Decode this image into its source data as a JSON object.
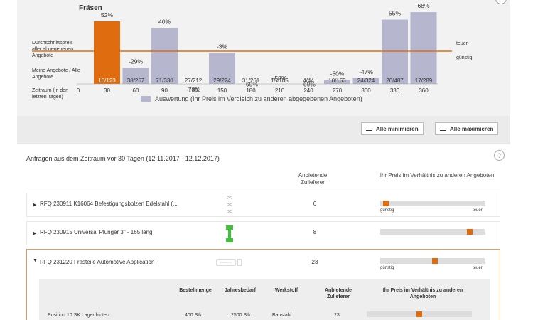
{
  "chart_data": {
    "type": "bar",
    "title": "Fräsen",
    "xlabel": "Zeitraum (in den letzten Tagen)",
    "x_ticks": [
      "0",
      "30",
      "60",
      "90",
      "120",
      "150",
      "180",
      "210",
      "240",
      "270",
      "300",
      "330",
      "360"
    ],
    "categories": [
      "30",
      "60",
      "90",
      "120",
      "150",
      "180",
      "210",
      "240",
      "270",
      "300",
      "330",
      "360"
    ],
    "percent_labels": [
      "52%",
      "-29%",
      "40%",
      "-78%",
      "-3%",
      "-69%",
      "-58%",
      "-69%",
      "-50%",
      "-47%",
      "55%",
      "68%"
    ],
    "bar_labels": [
      "10/123",
      "38/267",
      "71/330",
      "27/212",
      "29/224",
      "31/261",
      "15/105",
      "4/44",
      "10/163",
      "24/324",
      "20/487",
      "17/289"
    ],
    "values": [
      52,
      -29,
      40,
      -78,
      -3,
      -69,
      -58,
      -69,
      -50,
      -47,
      55,
      68
    ],
    "highlight_index": 0,
    "highlight_color": "#e06c10",
    "bar_color": "#b6b6cf",
    "reference_line_color": "#e06c10",
    "ylim": [
      -100,
      100
    ],
    "legend": "Auswertung (Ihr Preis im Vergleich zu anderen abgegebenen Angeboten)",
    "legend_position": "bottom"
  },
  "chart_side_labels": {
    "avg_price": "Durchschnittspreis aller abgegebenen Angebote",
    "my_offers": "Meine Angebote / Alle Angebote",
    "period": "Zeitraum (in den letzten Tagen)"
  },
  "chart_right_labels": {
    "expensive": "teuer",
    "cheap": "günstig"
  },
  "toolbar": {
    "minimize_all": "Alle minimieren",
    "maximize_all": "Alle maximieren"
  },
  "section": {
    "title": "Anfragen aus dem Zeitraum vor 30 Tagen (12.11.2017 - 12.12.2017)",
    "help": "?",
    "col_suppliers": "Anbietende Zulieferer",
    "col_price_ratio": "Ihr Preis im Verhältnis zu anderen Angeboten"
  },
  "rfqs": [
    {
      "label": "RFQ 230911 K16064 Befestigungsbolzen Edelstahl (...",
      "suppliers": "6",
      "caret": "▶",
      "price_position": 0.03
    },
    {
      "label": "RFQ 230915 Universal Plunger 3\" - 165 lang",
      "suppliers": "8",
      "caret": "▶",
      "price_position": 0.87
    },
    {
      "label": "RFQ 231220 Frästeile Automotive Application",
      "suppliers": "23",
      "caret": "▼",
      "price_position": 0.52
    }
  ],
  "range_labels": {
    "cheap": "günstig",
    "expensive": "teuer"
  },
  "details": {
    "headers": {
      "order_qty": "Bestellmenge",
      "annual_need": "Jahresbedarf",
      "material": "Werkstoff",
      "suppliers": "Anbietende Zulieferer",
      "price_ratio": "Ihr Preis im Verhältnis zu anderen Angeboten"
    },
    "row": {
      "position": "Position 10 SK Lager hinten",
      "order_qty": "400 Stk.",
      "annual_need": "2500 Stk.",
      "material": "Baustahl",
      "suppliers": "23",
      "price_position": 0.5
    }
  },
  "colors": {
    "accent": "#e06c10",
    "bar": "#b6b6cf",
    "green_part": "#3fc23a"
  }
}
